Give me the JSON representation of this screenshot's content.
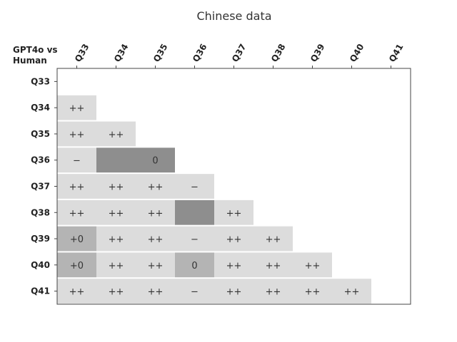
{
  "chart_data": {
    "type": "heatmap",
    "title": "Chinese data",
    "corner_label": [
      "GPT4o vs",
      "Human"
    ],
    "x_labels": [
      "Q33",
      "Q34",
      "Q35",
      "Q36",
      "Q37",
      "Q38",
      "Q39",
      "Q40",
      "Q41"
    ],
    "y_labels": [
      "Q33",
      "Q34",
      "Q35",
      "Q36",
      "Q37",
      "Q38",
      "Q39",
      "Q40",
      "Q41"
    ],
    "cells": [
      {
        "row": "Q34",
        "col": "Q33",
        "label": "++",
        "shade": "light"
      },
      {
        "row": "Q35",
        "col": "Q33",
        "label": "++",
        "shade": "light"
      },
      {
        "row": "Q35",
        "col": "Q34",
        "label": "++",
        "shade": "light"
      },
      {
        "row": "Q36",
        "col": "Q33",
        "label": "−",
        "shade": "light"
      },
      {
        "row": "Q36",
        "col": "Q34",
        "label": "",
        "shade": "dark"
      },
      {
        "row": "Q36",
        "col": "Q35",
        "label": "0",
        "shade": "dark"
      },
      {
        "row": "Q37",
        "col": "Q33",
        "label": "++",
        "shade": "light"
      },
      {
        "row": "Q37",
        "col": "Q34",
        "label": "++",
        "shade": "light"
      },
      {
        "row": "Q37",
        "col": "Q35",
        "label": "++",
        "shade": "light"
      },
      {
        "row": "Q37",
        "col": "Q36",
        "label": "−",
        "shade": "light"
      },
      {
        "row": "Q38",
        "col": "Q33",
        "label": "++",
        "shade": "light"
      },
      {
        "row": "Q38",
        "col": "Q34",
        "label": "++",
        "shade": "light"
      },
      {
        "row": "Q38",
        "col": "Q35",
        "label": "++",
        "shade": "light"
      },
      {
        "row": "Q38",
        "col": "Q36",
        "label": "",
        "shade": "dark"
      },
      {
        "row": "Q38",
        "col": "Q37",
        "label": "++",
        "shade": "light"
      },
      {
        "row": "Q39",
        "col": "Q33",
        "label": "+0",
        "shade": "medium"
      },
      {
        "row": "Q39",
        "col": "Q34",
        "label": "++",
        "shade": "light"
      },
      {
        "row": "Q39",
        "col": "Q35",
        "label": "++",
        "shade": "light"
      },
      {
        "row": "Q39",
        "col": "Q36",
        "label": "−",
        "shade": "light"
      },
      {
        "row": "Q39",
        "col": "Q37",
        "label": "++",
        "shade": "light"
      },
      {
        "row": "Q39",
        "col": "Q38",
        "label": "++",
        "shade": "light"
      },
      {
        "row": "Q40",
        "col": "Q33",
        "label": "+0",
        "shade": "medium"
      },
      {
        "row": "Q40",
        "col": "Q34",
        "label": "++",
        "shade": "light"
      },
      {
        "row": "Q40",
        "col": "Q35",
        "label": "++",
        "shade": "light"
      },
      {
        "row": "Q40",
        "col": "Q36",
        "label": "0",
        "shade": "medium"
      },
      {
        "row": "Q40",
        "col": "Q37",
        "label": "++",
        "shade": "light"
      },
      {
        "row": "Q40",
        "col": "Q38",
        "label": "++",
        "shade": "light"
      },
      {
        "row": "Q40",
        "col": "Q39",
        "label": "++",
        "shade": "light"
      },
      {
        "row": "Q41",
        "col": "Q33",
        "label": "++",
        "shade": "light"
      },
      {
        "row": "Q41",
        "col": "Q34",
        "label": "++",
        "shade": "light"
      },
      {
        "row": "Q41",
        "col": "Q35",
        "label": "++",
        "shade": "light"
      },
      {
        "row": "Q41",
        "col": "Q36",
        "label": "−",
        "shade": "light"
      },
      {
        "row": "Q41",
        "col": "Q37",
        "label": "++",
        "shade": "light"
      },
      {
        "row": "Q41",
        "col": "Q38",
        "label": "++",
        "shade": "light"
      },
      {
        "row": "Q41",
        "col": "Q39",
        "label": "++",
        "shade": "light"
      },
      {
        "row": "Q41",
        "col": "Q40",
        "label": "++",
        "shade": "light"
      }
    ],
    "shade_colors": {
      "light": "#dcdcdc",
      "medium": "#b4b4b4",
      "dark": "#8e8e8e"
    },
    "grid": false
  }
}
